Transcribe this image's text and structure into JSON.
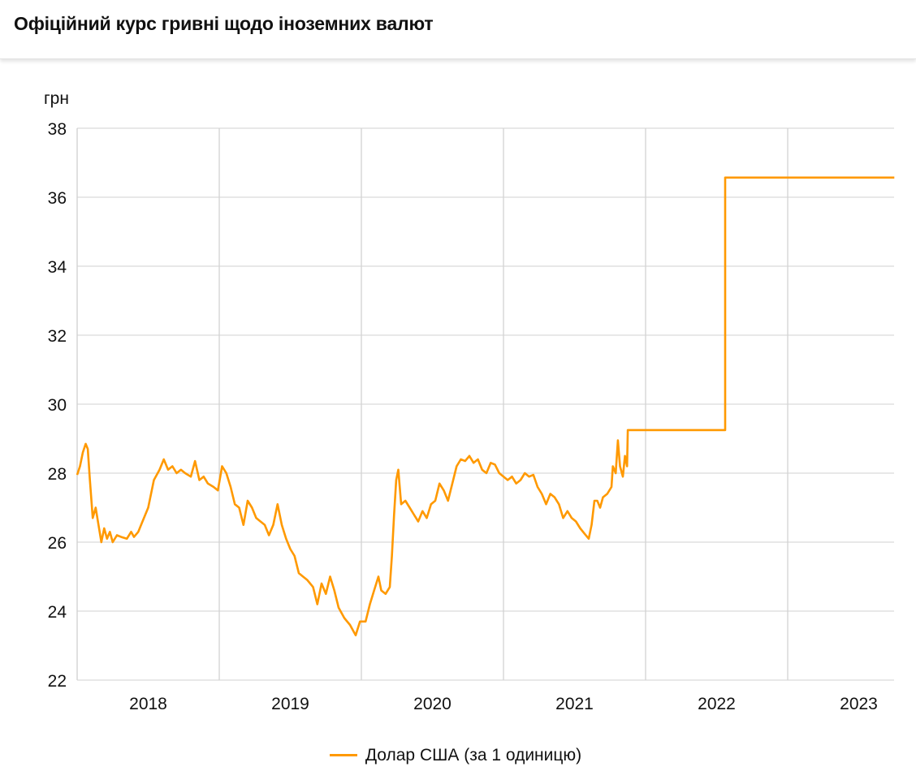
{
  "header": {
    "title": "Офіційний курс гривні щодо іноземних валют"
  },
  "chart_data": {
    "type": "line",
    "title": "Офіційний курс гривні щодо іноземних валют",
    "ylabel": "грн",
    "xlabel": "",
    "ylim": [
      22,
      38
    ],
    "yticks": [
      22,
      24,
      26,
      28,
      30,
      32,
      34,
      36,
      38
    ],
    "xlim": [
      2018.0,
      2023.75
    ],
    "xtick_labels": [
      "2018",
      "2019",
      "2020",
      "2021",
      "2022",
      "2023"
    ],
    "grid": true,
    "legend_position": "bottom-center",
    "series": [
      {
        "name": "Долар США (за 1 одиницю)",
        "color": "#ff9900",
        "points": [
          [
            2018.0,
            27.95
          ],
          [
            2018.02,
            28.2
          ],
          [
            2018.04,
            28.6
          ],
          [
            2018.06,
            28.85
          ],
          [
            2018.075,
            28.7
          ],
          [
            2018.09,
            27.8
          ],
          [
            2018.11,
            26.7
          ],
          [
            2018.13,
            27.0
          ],
          [
            2018.15,
            26.5
          ],
          [
            2018.17,
            26.0
          ],
          [
            2018.19,
            26.4
          ],
          [
            2018.21,
            26.1
          ],
          [
            2018.23,
            26.3
          ],
          [
            2018.25,
            26.0
          ],
          [
            2018.28,
            26.2
          ],
          [
            2018.31,
            26.15
          ],
          [
            2018.35,
            26.1
          ],
          [
            2018.38,
            26.3
          ],
          [
            2018.4,
            26.15
          ],
          [
            2018.43,
            26.3
          ],
          [
            2018.46,
            26.6
          ],
          [
            2018.5,
            27.0
          ],
          [
            2018.54,
            27.8
          ],
          [
            2018.58,
            28.1
          ],
          [
            2018.61,
            28.4
          ],
          [
            2018.64,
            28.1
          ],
          [
            2018.67,
            28.2
          ],
          [
            2018.7,
            28.0
          ],
          [
            2018.73,
            28.1
          ],
          [
            2018.76,
            28.0
          ],
          [
            2018.8,
            27.9
          ],
          [
            2018.83,
            28.35
          ],
          [
            2018.86,
            27.8
          ],
          [
            2018.89,
            27.9
          ],
          [
            2018.92,
            27.7
          ],
          [
            2018.96,
            27.6
          ],
          [
            2018.99,
            27.5
          ],
          [
            2019.02,
            28.2
          ],
          [
            2019.05,
            28.0
          ],
          [
            2019.08,
            27.6
          ],
          [
            2019.11,
            27.1
          ],
          [
            2019.14,
            27.0
          ],
          [
            2019.17,
            26.5
          ],
          [
            2019.2,
            27.2
          ],
          [
            2019.23,
            27.0
          ],
          [
            2019.26,
            26.7
          ],
          [
            2019.29,
            26.6
          ],
          [
            2019.32,
            26.5
          ],
          [
            2019.35,
            26.2
          ],
          [
            2019.38,
            26.5
          ],
          [
            2019.41,
            27.1
          ],
          [
            2019.44,
            26.5
          ],
          [
            2019.47,
            26.1
          ],
          [
            2019.5,
            25.8
          ],
          [
            2019.53,
            25.6
          ],
          [
            2019.56,
            25.1
          ],
          [
            2019.59,
            25.0
          ],
          [
            2019.62,
            24.9
          ],
          [
            2019.66,
            24.7
          ],
          [
            2019.69,
            24.2
          ],
          [
            2019.72,
            24.8
          ],
          [
            2019.75,
            24.5
          ],
          [
            2019.78,
            25.0
          ],
          [
            2019.81,
            24.6
          ],
          [
            2019.84,
            24.1
          ],
          [
            2019.88,
            23.8
          ],
          [
            2019.92,
            23.6
          ],
          [
            2019.96,
            23.3
          ],
          [
            2019.99,
            23.7
          ],
          [
            2020.03,
            23.7
          ],
          [
            2020.06,
            24.2
          ],
          [
            2020.09,
            24.6
          ],
          [
            2020.12,
            25.0
          ],
          [
            2020.14,
            24.6
          ],
          [
            2020.17,
            24.5
          ],
          [
            2020.2,
            24.7
          ],
          [
            2020.215,
            25.6
          ],
          [
            2020.23,
            26.8
          ],
          [
            2020.245,
            27.8
          ],
          [
            2020.26,
            28.1
          ],
          [
            2020.28,
            27.1
          ],
          [
            2020.31,
            27.2
          ],
          [
            2020.34,
            27.0
          ],
          [
            2020.37,
            26.8
          ],
          [
            2020.4,
            26.6
          ],
          [
            2020.43,
            26.9
          ],
          [
            2020.46,
            26.7
          ],
          [
            2020.49,
            27.1
          ],
          [
            2020.52,
            27.2
          ],
          [
            2020.55,
            27.7
          ],
          [
            2020.58,
            27.5
          ],
          [
            2020.61,
            27.2
          ],
          [
            2020.64,
            27.7
          ],
          [
            2020.67,
            28.2
          ],
          [
            2020.7,
            28.4
          ],
          [
            2020.73,
            28.35
          ],
          [
            2020.76,
            28.5
          ],
          [
            2020.79,
            28.3
          ],
          [
            2020.82,
            28.4
          ],
          [
            2020.85,
            28.1
          ],
          [
            2020.88,
            28.0
          ],
          [
            2020.91,
            28.3
          ],
          [
            2020.94,
            28.25
          ],
          [
            2020.97,
            28.0
          ],
          [
            2021.0,
            27.9
          ],
          [
            2021.03,
            27.8
          ],
          [
            2021.06,
            27.9
          ],
          [
            2021.09,
            27.7
          ],
          [
            2021.12,
            27.8
          ],
          [
            2021.15,
            28.0
          ],
          [
            2021.18,
            27.9
          ],
          [
            2021.21,
            27.95
          ],
          [
            2021.24,
            27.6
          ],
          [
            2021.27,
            27.4
          ],
          [
            2021.3,
            27.1
          ],
          [
            2021.33,
            27.4
          ],
          [
            2021.36,
            27.3
          ],
          [
            2021.39,
            27.1
          ],
          [
            2021.42,
            26.7
          ],
          [
            2021.45,
            26.9
          ],
          [
            2021.48,
            26.7
          ],
          [
            2021.51,
            26.6
          ],
          [
            2021.54,
            26.4
          ],
          [
            2021.57,
            26.25
          ],
          [
            2021.6,
            26.1
          ],
          [
            2021.62,
            26.5
          ],
          [
            2021.64,
            27.2
          ],
          [
            2021.66,
            27.2
          ],
          [
            2021.68,
            27.0
          ],
          [
            2021.7,
            27.3
          ],
          [
            2021.73,
            27.4
          ],
          [
            2021.76,
            27.6
          ],
          [
            2021.77,
            28.2
          ],
          [
            2021.79,
            28.0
          ],
          [
            2021.805,
            28.95
          ],
          [
            2021.82,
            28.2
          ],
          [
            2021.84,
            27.9
          ],
          [
            2021.855,
            28.5
          ],
          [
            2021.87,
            28.2
          ],
          [
            2021.875,
            29.25
          ],
          [
            2022.56,
            29.25
          ],
          [
            2022.56,
            36.57
          ],
          [
            2023.75,
            36.57
          ]
        ]
      }
    ]
  },
  "legend": {
    "items": [
      {
        "label": "Долар США (за 1 одиницю)",
        "color": "#ff9900"
      }
    ]
  }
}
